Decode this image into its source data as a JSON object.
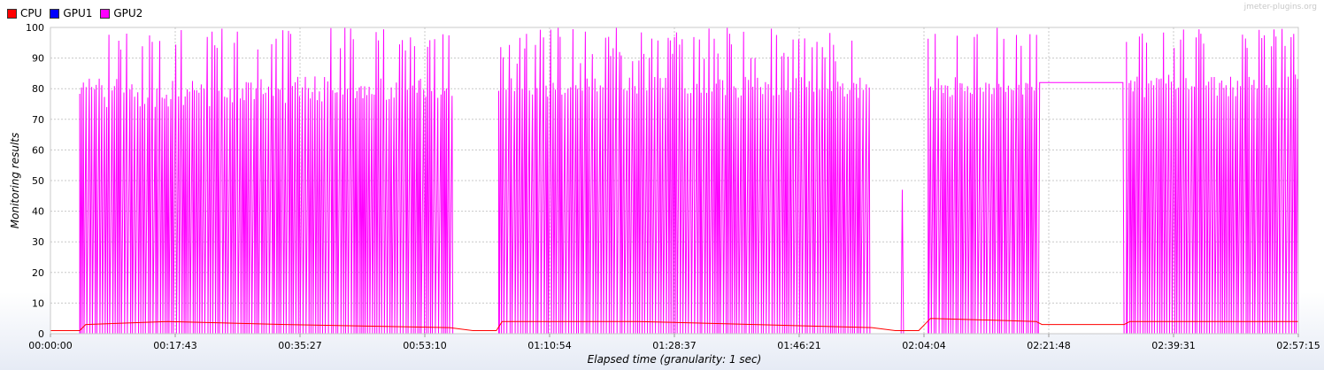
{
  "watermark": "jmeter-plugins.org",
  "chart_data": {
    "type": "line",
    "title": "",
    "xlabel": "Elapsed time (granularity: 1 sec)",
    "ylabel": "Monitoring results",
    "ylim": [
      0,
      100
    ],
    "yticks": [
      "0",
      "10",
      "20",
      "30",
      "40",
      "50",
      "60",
      "70",
      "80",
      "90",
      "100"
    ],
    "x_range_seconds": [
      0,
      10635
    ],
    "xticks": [
      "00:00:00",
      "00:17:43",
      "00:35:27",
      "00:53:10",
      "01:10:54",
      "01:28:37",
      "01:46:21",
      "02:04:04",
      "02:21:48",
      "02:39:31",
      "02:57:15"
    ],
    "grid": true,
    "legend_placement": "top-left",
    "series": [
      {
        "name": "CPU",
        "color": "#ff0000",
        "points": [
          [
            0,
            1
          ],
          [
            250,
            1
          ],
          [
            300,
            3
          ],
          [
            1000,
            4
          ],
          [
            2000,
            3
          ],
          [
            3400,
            2
          ],
          [
            3600,
            1
          ],
          [
            3800,
            1
          ],
          [
            3850,
            4
          ],
          [
            5000,
            4
          ],
          [
            6000,
            3
          ],
          [
            7000,
            2
          ],
          [
            7200,
            1
          ],
          [
            7400,
            1
          ],
          [
            7500,
            5
          ],
          [
            8400,
            4
          ],
          [
            8450,
            3
          ],
          [
            9150,
            3
          ],
          [
            9200,
            4
          ],
          [
            10635,
            4
          ]
        ]
      },
      {
        "name": "GPU1",
        "color": "#0000ff",
        "points": [
          [
            0,
            0
          ],
          [
            10635,
            0
          ]
        ]
      },
      {
        "name": "GPU2",
        "color": "#ff00ff",
        "bursts": [
          {
            "start": 250,
            "end": 3430,
            "low": 0,
            "peaks": [
              78,
              81,
              84,
              100,
              96,
              82
            ]
          },
          {
            "start": 3820,
            "end": 7000,
            "low": 0,
            "peaks": [
              81,
              84,
              100,
              97,
              92,
              82
            ]
          },
          {
            "start": 7480,
            "end": 8420,
            "low": 0,
            "peaks": [
              82,
              100,
              98,
              84,
              81
            ]
          },
          {
            "start": 9170,
            "end": 10635,
            "low": 0,
            "peaks": [
              81,
              84,
              97,
              100,
              85
            ]
          }
        ],
        "points": [
          [
            0,
            0
          ],
          [
            3430,
            0
          ],
          [
            3820,
            0
          ],
          [
            7000,
            0
          ],
          [
            7250,
            0
          ],
          [
            7260,
            47
          ],
          [
            7270,
            0
          ],
          [
            7480,
            0
          ],
          [
            8420,
            0
          ],
          [
            8430,
            82
          ],
          [
            9140,
            82
          ],
          [
            9150,
            0
          ],
          [
            9170,
            0
          ]
        ]
      }
    ]
  }
}
